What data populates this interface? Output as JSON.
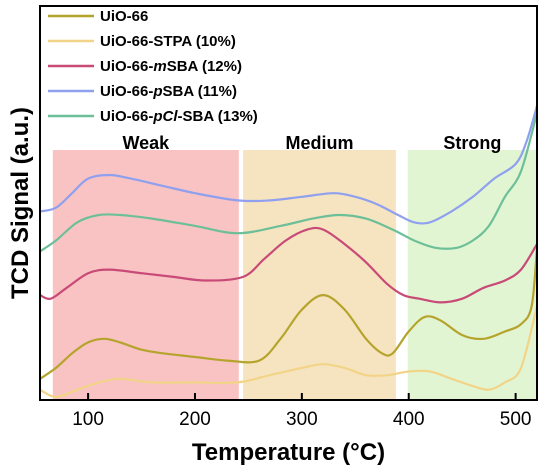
{
  "chart_data": {
    "type": "line",
    "title": "",
    "xlabel": "Temperature (°C)",
    "ylabel": "TCD Signal (a.u.)",
    "xlim": [
      55,
      520
    ],
    "ylim": [
      0,
      100
    ],
    "x_ticks": [
      100,
      200,
      300,
      400,
      500
    ],
    "y_ticks_visible": false,
    "grid": false,
    "legend_position": "top-left",
    "regions": [
      {
        "label": "Weak",
        "x_start": 67,
        "x_end": 241,
        "color": "#f9c3c3"
      },
      {
        "label": "Medium",
        "x_start": 245,
        "x_end": 388,
        "color": "#f6e4c0"
      },
      {
        "label": "Strong",
        "x_start": 399,
        "x_end": 520,
        "color": "#e2f5d3"
      }
    ],
    "series": [
      {
        "name": "UiO-66",
        "color": "#b5a42c",
        "points": [
          [
            55,
            5
          ],
          [
            70,
            8
          ],
          [
            85,
            12
          ],
          [
            100,
            15
          ],
          [
            115,
            16
          ],
          [
            130,
            15
          ],
          [
            150,
            13
          ],
          [
            170,
            12
          ],
          [
            200,
            11
          ],
          [
            230,
            10
          ],
          [
            260,
            10
          ],
          [
            280,
            16
          ],
          [
            300,
            24
          ],
          [
            320,
            28
          ],
          [
            340,
            24
          ],
          [
            360,
            16
          ],
          [
            375,
            12
          ],
          [
            385,
            12
          ],
          [
            400,
            18
          ],
          [
            415,
            22
          ],
          [
            430,
            21
          ],
          [
            450,
            17
          ],
          [
            470,
            16
          ],
          [
            490,
            18
          ],
          [
            505,
            20
          ],
          [
            515,
            25
          ],
          [
            520,
            41
          ]
        ]
      },
      {
        "name": "UiO-66-STPA (10%)",
        "color": "#f2d488",
        "points": [
          [
            55,
            2
          ],
          [
            70,
            0
          ],
          [
            90,
            2
          ],
          [
            110,
            4
          ],
          [
            130,
            5
          ],
          [
            160,
            4
          ],
          [
            200,
            4
          ],
          [
            240,
            4
          ],
          [
            270,
            6
          ],
          [
            300,
            8
          ],
          [
            320,
            9
          ],
          [
            340,
            8
          ],
          [
            360,
            6
          ],
          [
            380,
            6
          ],
          [
            400,
            7
          ],
          [
            420,
            7
          ],
          [
            440,
            5
          ],
          [
            460,
            3
          ],
          [
            475,
            2
          ],
          [
            490,
            4
          ],
          [
            505,
            8
          ],
          [
            520,
            25
          ]
        ]
      },
      {
        "name": "UiO-66-mSBA (12%)",
        "color": "#c84a77",
        "points": [
          [
            55,
            28
          ],
          [
            65,
            27
          ],
          [
            80,
            30
          ],
          [
            100,
            34
          ],
          [
            120,
            35
          ],
          [
            150,
            34
          ],
          [
            180,
            33
          ],
          [
            210,
            32
          ],
          [
            245,
            33
          ],
          [
            265,
            38
          ],
          [
            285,
            43
          ],
          [
            305,
            46
          ],
          [
            320,
            46
          ],
          [
            340,
            42
          ],
          [
            360,
            37
          ],
          [
            380,
            31
          ],
          [
            395,
            28
          ],
          [
            410,
            27
          ],
          [
            430,
            26
          ],
          [
            450,
            27
          ],
          [
            470,
            30
          ],
          [
            490,
            32
          ],
          [
            505,
            35
          ],
          [
            520,
            42
          ]
        ]
      },
      {
        "name": "UiO-66-pSBA (11%)",
        "color": "#8fa0ee",
        "points": [
          [
            55,
            51
          ],
          [
            70,
            52
          ],
          [
            85,
            56
          ],
          [
            100,
            60
          ],
          [
            120,
            61
          ],
          [
            140,
            60
          ],
          [
            170,
            58
          ],
          [
            200,
            56
          ],
          [
            240,
            54
          ],
          [
            270,
            54
          ],
          [
            300,
            55
          ],
          [
            330,
            56
          ],
          [
            350,
            55
          ],
          [
            370,
            53
          ],
          [
            390,
            50
          ],
          [
            405,
            48
          ],
          [
            420,
            48
          ],
          [
            440,
            51
          ],
          [
            460,
            55
          ],
          [
            480,
            60
          ],
          [
            500,
            64
          ],
          [
            510,
            70
          ],
          [
            520,
            80
          ]
        ]
      },
      {
        "name": "UiO-66-pCl-SBA (13%)",
        "color": "#6dbf98",
        "points": [
          [
            55,
            40
          ],
          [
            70,
            43
          ],
          [
            90,
            48
          ],
          [
            110,
            50
          ],
          [
            130,
            50
          ],
          [
            160,
            49
          ],
          [
            200,
            47
          ],
          [
            240,
            45
          ],
          [
            280,
            47
          ],
          [
            310,
            49
          ],
          [
            335,
            50
          ],
          [
            360,
            49
          ],
          [
            385,
            46
          ],
          [
            405,
            43
          ],
          [
            425,
            41
          ],
          [
            445,
            41
          ],
          [
            460,
            43
          ],
          [
            475,
            47
          ],
          [
            490,
            55
          ],
          [
            505,
            62
          ],
          [
            520,
            78
          ]
        ]
      }
    ],
    "legend_entries": [
      {
        "text": "UiO-66",
        "color": "#b5a42c"
      },
      {
        "text": "UiO-66-STPA (10%)",
        "color": "#f2d488"
      },
      {
        "prefix": "UiO-66-",
        "italic": "m",
        "suffix": "SBA (12%)",
        "color": "#c84a77"
      },
      {
        "prefix": "UiO-66-",
        "italic": "p",
        "suffix": "SBA (11%)",
        "color": "#8fa0ee"
      },
      {
        "prefix": "UiO-66-",
        "italic": "pCl",
        "suffix": "-SBA (13%)",
        "color": "#6dbf98"
      }
    ]
  }
}
